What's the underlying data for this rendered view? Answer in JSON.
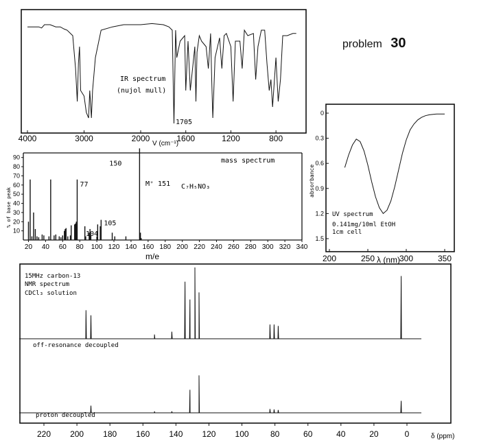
{
  "page": {
    "heading": "problem",
    "number": "30"
  },
  "chart_data": [
    {
      "type": "line",
      "name": "ir",
      "title": "IR spectrum",
      "subtitle": "(nujol mull)",
      "xlabel": "V (cm⁻¹)",
      "xlim": [
        4000,
        600
      ],
      "ticks": [
        4000,
        3000,
        2000,
        1600,
        1200,
        800
      ],
      "ylim": [
        0,
        100
      ],
      "annotation": "1705",
      "x": [
        4000,
        3800,
        3750,
        3700,
        3600,
        3500,
        3420,
        3350,
        3300,
        3200,
        3150,
        3120,
        3100,
        3080,
        3060,
        3000,
        2960,
        2920,
        2900,
        2870,
        2850,
        2800,
        2700,
        2500,
        2300,
        2100,
        2000,
        1900,
        1800,
        1750,
        1720,
        1705,
        1690,
        1680,
        1650,
        1610,
        1600,
        1580,
        1560,
        1520,
        1510,
        1500,
        1480,
        1460,
        1420,
        1400,
        1380,
        1370,
        1360,
        1340,
        1300,
        1280,
        1260,
        1240,
        1200,
        1180,
        1160,
        1120,
        1100,
        1080,
        1050,
        1000,
        980,
        960,
        930,
        900,
        880,
        860,
        845,
        830,
        800,
        780,
        760,
        740,
        700,
        650,
        620
      ],
      "y": [
        88,
        88,
        87,
        90,
        90,
        88,
        88,
        86,
        85,
        80,
        50,
        20,
        55,
        70,
        30,
        25,
        10,
        5,
        30,
        5,
        30,
        60,
        85,
        88,
        90,
        90,
        90,
        91,
        90,
        88,
        85,
        0,
        85,
        60,
        75,
        80,
        30,
        75,
        30,
        70,
        20,
        65,
        80,
        75,
        70,
        50,
        82,
        40,
        5,
        60,
        78,
        50,
        80,
        82,
        70,
        20,
        75,
        75,
        50,
        85,
        80,
        82,
        40,
        70,
        85,
        85,
        55,
        30,
        40,
        15,
        60,
        20,
        40,
        80,
        80,
        82,
        82
      ]
    },
    {
      "type": "bar",
      "name": "mass",
      "title": "mass spectrum",
      "xlabel": "m/e",
      "ylabel": "% of base peak",
      "xlim": [
        14,
        340
      ],
      "ylim": [
        0,
        95
      ],
      "xticks": [
        20,
        40,
        60,
        80,
        100,
        120,
        140,
        160,
        180,
        200,
        220,
        240,
        260,
        280,
        300,
        320,
        340
      ],
      "yticks": [
        10,
        20,
        30,
        40,
        50,
        60,
        70,
        80,
        90
      ],
      "x": [
        20,
        22,
        24,
        26,
        28,
        30,
        32,
        36,
        38,
        44,
        46,
        50,
        52,
        56,
        58,
        60,
        62,
        63,
        64,
        66,
        69,
        70,
        74,
        75,
        76,
        77,
        86,
        87,
        91,
        92,
        93,
        100,
        101,
        104,
        105,
        118,
        121,
        134,
        150,
        151,
        152
      ],
      "y": [
        20,
        66,
        4,
        30,
        12,
        4,
        3,
        6,
        5,
        4,
        66,
        5,
        6,
        4,
        3,
        5,
        10,
        12,
        13,
        4,
        5,
        16,
        17,
        18,
        20,
        66,
        15,
        4,
        8,
        12,
        5,
        4,
        17,
        15,
        22,
        8,
        4,
        4,
        100,
        8,
        2
      ],
      "peak_labels": [
        "150",
        "77",
        "104",
        "105"
      ],
      "molecular_ion_label": "M⁺ 151",
      "formula": "C₇H₅NO₃"
    },
    {
      "type": "line",
      "name": "uv",
      "title": "UV spectrum",
      "note": [
        "0.141mg/10ml EtOH",
        "1cm cell"
      ],
      "xlabel": "λ (nm)",
      "ylabel": "absorbance",
      "xlim": [
        195,
        355
      ],
      "ylim": [
        0,
        1.5
      ],
      "xticks": [
        200,
        250,
        300,
        350
      ],
      "yticks": [
        0,
        0.3,
        0.6,
        0.9,
        1.2,
        1.5
      ],
      "ytick_labels": [
        "0",
        "0.3",
        "0.6",
        "0.9",
        "1.2",
        "1.5"
      ],
      "x": [
        220,
        225,
        230,
        235,
        240,
        245,
        250,
        255,
        260,
        265,
        270,
        275,
        280,
        285,
        290,
        295,
        300,
        305,
        310,
        315,
        320,
        325,
        330,
        335,
        340,
        345,
        350
      ],
      "y": [
        0.65,
        0.5,
        0.38,
        0.31,
        0.34,
        0.45,
        0.62,
        0.82,
        1.0,
        1.13,
        1.2,
        1.16,
        1.05,
        0.88,
        0.68,
        0.48,
        0.32,
        0.2,
        0.13,
        0.08,
        0.05,
        0.03,
        0.02,
        0.015,
        0.01,
        0.01,
        0.01
      ]
    },
    {
      "type": "line",
      "name": "cnmr",
      "title": "15MHz carbon-13",
      "subtitle": "NMR spectrum",
      "solvent": "CDCl₃ solution",
      "xlabel": "δ (ppm)",
      "xlim": [
        230,
        -10
      ],
      "xticks": [
        220,
        200,
        180,
        160,
        140,
        120,
        100,
        80,
        60,
        40,
        20,
        0
      ],
      "traces": [
        {
          "label": "off-resonance decoupled",
          "peaks_ppm": [
            194.5,
            191.5,
            153,
            142.5,
            134.5,
            131.5,
            128.5,
            126,
            83,
            80.5,
            78,
            3.5
          ],
          "heights": [
            40,
            33,
            6,
            10,
            80,
            55,
            100,
            65,
            20,
            20,
            18,
            88
          ]
        },
        {
          "label": "proton decoupled",
          "peaks_ppm": [
            191.5,
            153,
            142.5,
            131.5,
            126,
            83,
            80.5,
            78,
            3.5
          ],
          "heights": [
            15,
            3,
            3,
            48,
            78,
            8,
            7,
            6,
            25
          ]
        }
      ]
    }
  ]
}
